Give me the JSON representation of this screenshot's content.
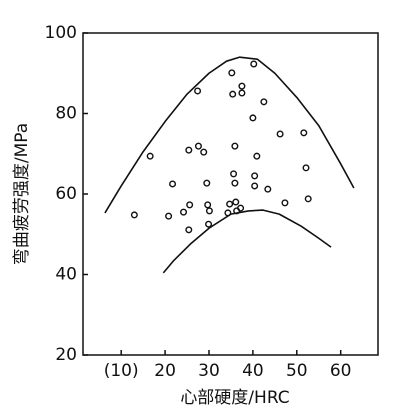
{
  "chart_data": {
    "type": "scatter",
    "xlabel": "心部硬度/HRC",
    "ylabel": "弯曲疲劳强度/MPa",
    "xlim": [
      1.3,
      68.5
    ],
    "ylim": [
      20,
      100
    ],
    "xticks": [
      {
        "value": 10,
        "label": "(10)"
      },
      20,
      30,
      40,
      50,
      60
    ],
    "yticks": [
      20,
      40,
      60,
      80,
      100
    ],
    "color": "#111111",
    "series": [
      {
        "type": "scatter",
        "x": [
          13,
          16.6,
          21.7,
          20.8,
          24.2,
          25.6,
          25.4,
          25.4,
          27.4,
          27.6,
          28.8,
          29.5,
          29.7,
          30.1,
          29.9,
          34.3,
          34.7,
          35.2,
          35.4,
          35.6,
          35.9,
          35.9,
          36.1,
          36.3,
          37.2,
          37.5,
          37.5,
          40,
          40.2,
          40.4,
          40.4,
          40.9,
          42.5,
          43.4,
          46.2,
          47.3,
          51.6,
          52.1,
          52.6
        ],
        "values": [
          54.8,
          69.4,
          62.5,
          54.5,
          55.5,
          57.3,
          51.1,
          70.9,
          85.6,
          71.9,
          70.4,
          62.7,
          57.3,
          55.8,
          52.5,
          55.3,
          57.5,
          90.1,
          84.8,
          65.0,
          71.9,
          62.7,
          58.0,
          55.8,
          56.5,
          86.8,
          85.1,
          78.9,
          92.3,
          64.5,
          62.0,
          69.4,
          82.9,
          61.2,
          74.9,
          57.8,
          75.2,
          66.5,
          58.8
        ]
      },
      {
        "type": "line",
        "x": [
          6.3,
          10,
          15,
          20,
          25,
          30,
          34,
          37,
          41,
          45,
          50,
          55,
          60,
          63
        ],
        "values": [
          55.3,
          62,
          70.5,
          78,
          84.8,
          90,
          93,
          94,
          93.5,
          90,
          84,
          77,
          67.5,
          61.5
        ]
      },
      {
        "type": "line",
        "x": [
          19.6,
          22,
          25.8,
          30,
          35,
          39,
          42.3,
          46,
          51,
          55,
          57.8
        ],
        "values": [
          40.4,
          43.5,
          47.6,
          51.5,
          55,
          55.8,
          56,
          55,
          52,
          49,
          46.8
        ]
      }
    ]
  }
}
